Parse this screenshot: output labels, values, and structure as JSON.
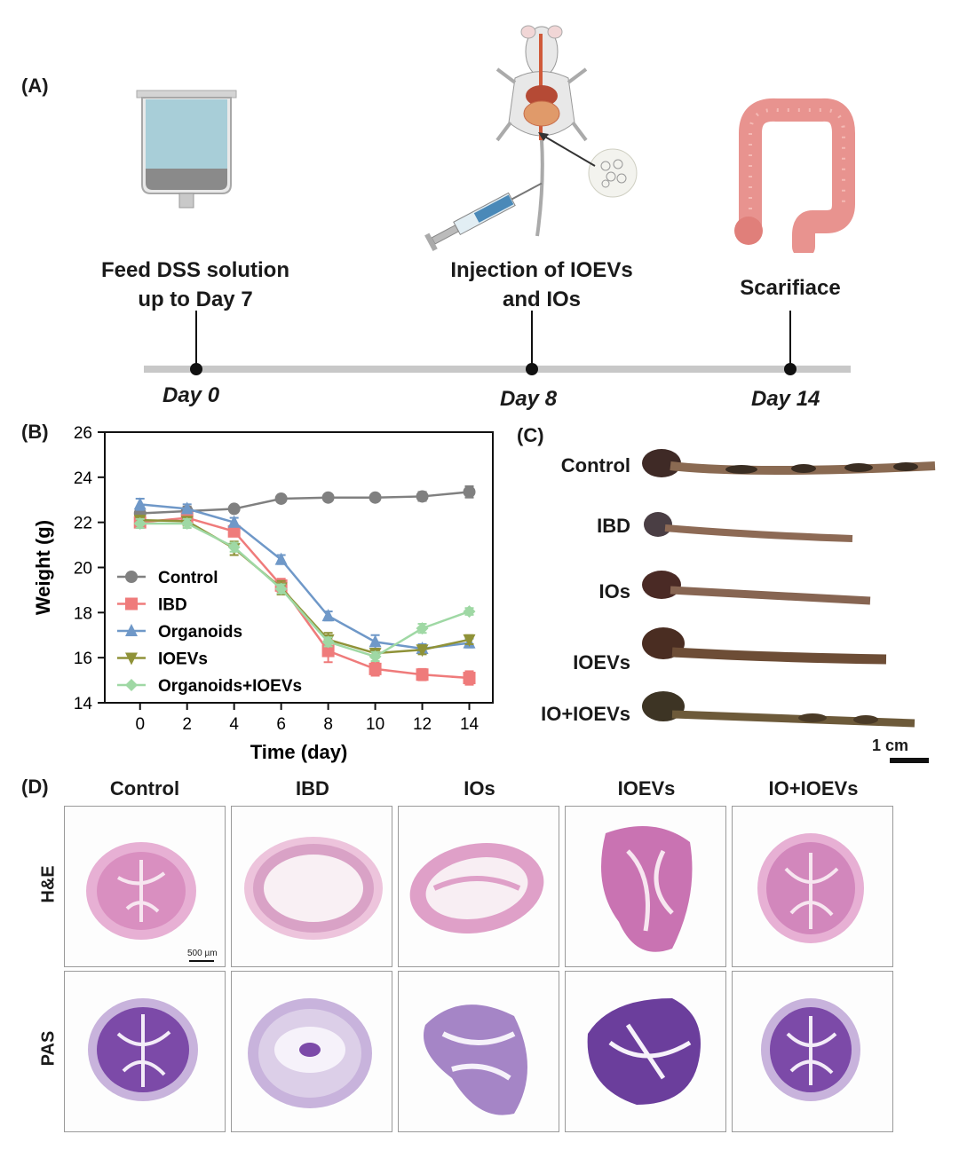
{
  "panel_a": {
    "label": "(A)",
    "steps": [
      {
        "text_1": "Feed DSS solution",
        "text_2": "up to Day 7",
        "day": "Day 0"
      },
      {
        "text_1": "Injection of IOEVs",
        "text_2": "and IOs",
        "day": "Day 8"
      },
      {
        "text_1": "Scarifiace",
        "text_2": "",
        "day": "Day 14"
      }
    ],
    "icons": [
      "dss-container-icon",
      "mouse-icon",
      "syringe-icon",
      "organoid-icon",
      "colon-icon"
    ]
  },
  "panel_b": {
    "label": "(B)"
  },
  "chart_data": {
    "type": "line",
    "title": "",
    "xlabel": "Time (day)",
    "ylabel": "Weight (g)",
    "x": [
      0,
      2,
      4,
      6,
      8,
      10,
      12,
      14
    ],
    "xticks": [
      "0",
      "2",
      "4",
      "6",
      "8",
      "10",
      "12",
      "14"
    ],
    "yticks": [
      "14",
      "16",
      "18",
      "20",
      "22",
      "24",
      "26"
    ],
    "ylim": [
      14,
      26
    ],
    "xlim": [
      -1.5,
      15
    ],
    "legend_position": "lower-left",
    "series": [
      {
        "name": "Control",
        "color": "#808080",
        "marker": "circle",
        "values": [
          22.4,
          22.5,
          22.6,
          23.05,
          23.1,
          23.1,
          23.15,
          23.35
        ],
        "errors": [
          0.25,
          0.2,
          0.12,
          0.1,
          0.15,
          0.15,
          0.2,
          0.25
        ]
      },
      {
        "name": "IBD",
        "color": "#ef7b7b",
        "marker": "square",
        "values": [
          22.0,
          22.2,
          21.6,
          19.2,
          16.3,
          15.5,
          15.25,
          15.1
        ],
        "errors": [
          0.2,
          0.15,
          0.2,
          0.3,
          0.5,
          0.3,
          0.25,
          0.3
        ]
      },
      {
        "name": "Organoids",
        "color": "#6f98c8",
        "marker": "triangle-up",
        "values": [
          22.8,
          22.6,
          22.0,
          20.35,
          17.85,
          16.7,
          16.4,
          16.65
        ],
        "errors": [
          0.25,
          0.2,
          0.2,
          0.2,
          0.2,
          0.3,
          0.2,
          0.2
        ]
      },
      {
        "name": "IOEVs",
        "color": "#8f9238",
        "marker": "triangle-down",
        "values": [
          22.1,
          22.05,
          20.85,
          19.1,
          16.8,
          16.2,
          16.35,
          16.8
        ],
        "errors": [
          0.2,
          0.2,
          0.3,
          0.3,
          0.3,
          0.2,
          0.2,
          0.2
        ]
      },
      {
        "name": "Organoids+IOEVs",
        "color": "#9fd8a4",
        "marker": "diamond",
        "values": [
          21.95,
          21.95,
          20.9,
          19.05,
          16.7,
          16.05,
          17.3,
          18.05
        ],
        "errors": [
          0.2,
          0.2,
          0.2,
          0.2,
          0.2,
          0.2,
          0.2,
          0.15
        ]
      }
    ]
  },
  "panel_c": {
    "label": "(C)",
    "groups": [
      "Control",
      "IBD",
      "IOs",
      "IOEVs",
      "IO+IOEVs"
    ],
    "scale": "1 cm"
  },
  "panel_d": {
    "label": "(D)",
    "columns": [
      "Control",
      "IBD",
      "IOs",
      "IOEVs",
      "IO+IOEVs"
    ],
    "rows": [
      "H&E",
      "PAS"
    ],
    "scale": "500 µm",
    "colors": {
      "he_fill": "#d98fc0",
      "he_edge": "#e7b0d4",
      "pas_fill": "#7c4aa8",
      "pas_edge": "#c8b3dc"
    }
  }
}
